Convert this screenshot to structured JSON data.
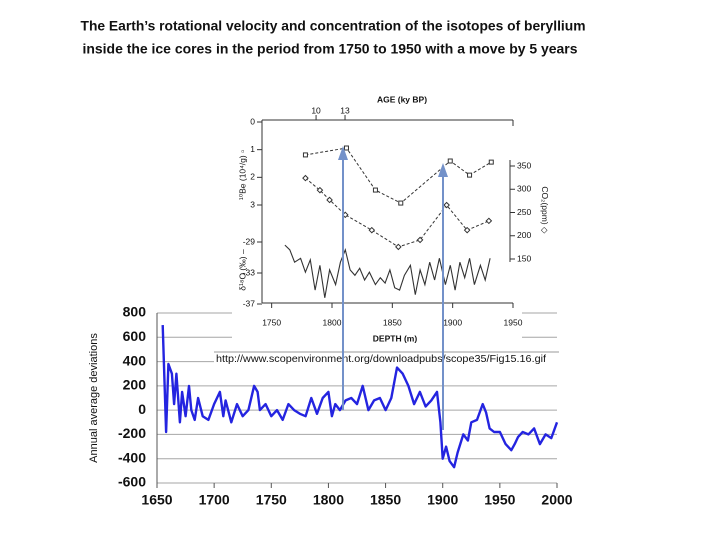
{
  "title_lines": [
    "The Earth’s rotational velocity and concentration of the isotopes of beryllium",
    "inside the ice cores in the period from 1750 to 1950 with a move by 5 years"
  ],
  "source_url": "http://www.scopenvironment.org/downloadpubs/scope35/Fig15.16.gif",
  "chart_data": [
    {
      "type": "line",
      "x_label": "DEPTH (m)",
      "xlim": [
        1742,
        1950
      ],
      "xticks": [
        1750,
        1800,
        1850,
        1900,
        1950
      ],
      "x2_label": "AGE (ky BP)",
      "x2lim": [
        4.4,
        30.4
      ],
      "x2ticks": [
        10,
        13
      ],
      "y_label": "¹⁰Be (10⁴/g) ▫",
      "ylim": [
        3,
        0
      ],
      "yticks": [
        0,
        1,
        2,
        3
      ],
      "y2_label": "CO₂(ppm) ◇",
      "y2lim": [
        150,
        350
      ],
      "y2ticks": [
        350,
        300,
        250,
        200,
        150
      ],
      "y3_label": "δ¹⁸O (‰) –",
      "y3lim": [
        -37,
        -29
      ],
      "y3ticks": [
        -29,
        -33,
        -37
      ],
      "series": [
        {
          "axis": "y",
          "color": "#333333",
          "dash": true,
          "marker": "square",
          "x": [
            1778,
            1812,
            1836,
            1857,
            1898,
            1914,
            1932
          ],
          "values": [
            1.19,
            0.94,
            2.46,
            2.93,
            1.41,
            1.92,
            1.45
          ]
        },
        {
          "axis": "y2",
          "color": "#333333",
          "dash": true,
          "marker": "diamond",
          "x": [
            1778,
            1790,
            1798,
            1811,
            1833,
            1855,
            1873,
            1895,
            1912,
            1930
          ],
          "values": [
            324,
            298,
            277,
            245,
            212,
            176,
            191,
            266,
            212,
            232
          ]
        },
        {
          "axis": "y3",
          "color": "#333333",
          "dash": false,
          "marker": "none",
          "x": [
            1761,
            1765,
            1769,
            1774,
            1778,
            1782,
            1786,
            1790,
            1794,
            1798,
            1803,
            1807,
            1811,
            1815,
            1819,
            1823,
            1827,
            1831,
            1836,
            1840,
            1844,
            1848,
            1852,
            1856,
            1860,
            1865,
            1869,
            1873,
            1877,
            1881,
            1885,
            1889,
            1894,
            1898,
            1902,
            1906,
            1910,
            1914,
            1918,
            1923,
            1927,
            1931
          ],
          "values": [
            -29.4,
            -30.0,
            -31.6,
            -31.1,
            -32.9,
            -31.3,
            -35.2,
            -32.0,
            -36.2,
            -32.6,
            -34.5,
            -31.6,
            -30.0,
            -32.6,
            -33.3,
            -32.4,
            -33.9,
            -32.9,
            -34.5,
            -33.6,
            -34.3,
            -32.6,
            -34.9,
            -35.2,
            -33.3,
            -32.0,
            -35.8,
            -32.6,
            -34.5,
            -31.6,
            -33.9,
            -31.1,
            -34.5,
            -32.0,
            -35.2,
            -31.6,
            -33.6,
            -31.1,
            -34.5,
            -32.0,
            -33.9,
            -31.1
          ]
        }
      ]
    },
    {
      "type": "line",
      "y_label": "Annual average deviations",
      "color": "#2424e0",
      "grid": true,
      "xlim": [
        1650,
        2000
      ],
      "xticks": [
        1650,
        1700,
        1750,
        1800,
        1850,
        1900,
        1950,
        2000
      ],
      "ylim": [
        -600,
        800
      ],
      "yticks": [
        800,
        600,
        400,
        200,
        0,
        -200,
        -400,
        -600
      ],
      "x": [
        1655,
        1658,
        1660,
        1663,
        1665,
        1667,
        1670,
        1672,
        1675,
        1678,
        1680,
        1683,
        1686,
        1690,
        1695,
        1700,
        1705,
        1708,
        1710,
        1715,
        1720,
        1725,
        1730,
        1735,
        1738,
        1740,
        1745,
        1750,
        1755,
        1760,
        1765,
        1770,
        1775,
        1780,
        1785,
        1790,
        1795,
        1800,
        1803,
        1806,
        1810,
        1815,
        1820,
        1825,
        1830,
        1835,
        1840,
        1845,
        1850,
        1855,
        1860,
        1865,
        1870,
        1875,
        1880,
        1885,
        1890,
        1895,
        1898,
        1900,
        1903,
        1906,
        1910,
        1913,
        1918,
        1922,
        1925,
        1930,
        1935,
        1938,
        1941,
        1945,
        1950,
        1955,
        1960,
        1963,
        1966,
        1970,
        1975,
        1980,
        1985,
        1990,
        1995,
        2000
      ],
      "values": [
        700,
        -180,
        380,
        300,
        50,
        300,
        -100,
        150,
        -50,
        200,
        0,
        -80,
        100,
        -50,
        -80,
        50,
        150,
        -50,
        80,
        -100,
        50,
        -50,
        0,
        200,
        150,
        0,
        50,
        -50,
        0,
        -80,
        50,
        0,
        -30,
        -50,
        100,
        -30,
        100,
        150,
        -50,
        50,
        0,
        80,
        100,
        50,
        200,
        0,
        80,
        100,
        0,
        100,
        350,
        300,
        200,
        50,
        150,
        30,
        80,
        150,
        -100,
        -400,
        -300,
        -420,
        -470,
        -350,
        -200,
        -250,
        -100,
        -80,
        50,
        -20,
        -150,
        -180,
        -180,
        -280,
        -330,
        -280,
        -220,
        -180,
        -200,
        -150,
        -280,
        -200,
        -230,
        -100
      ]
    }
  ]
}
